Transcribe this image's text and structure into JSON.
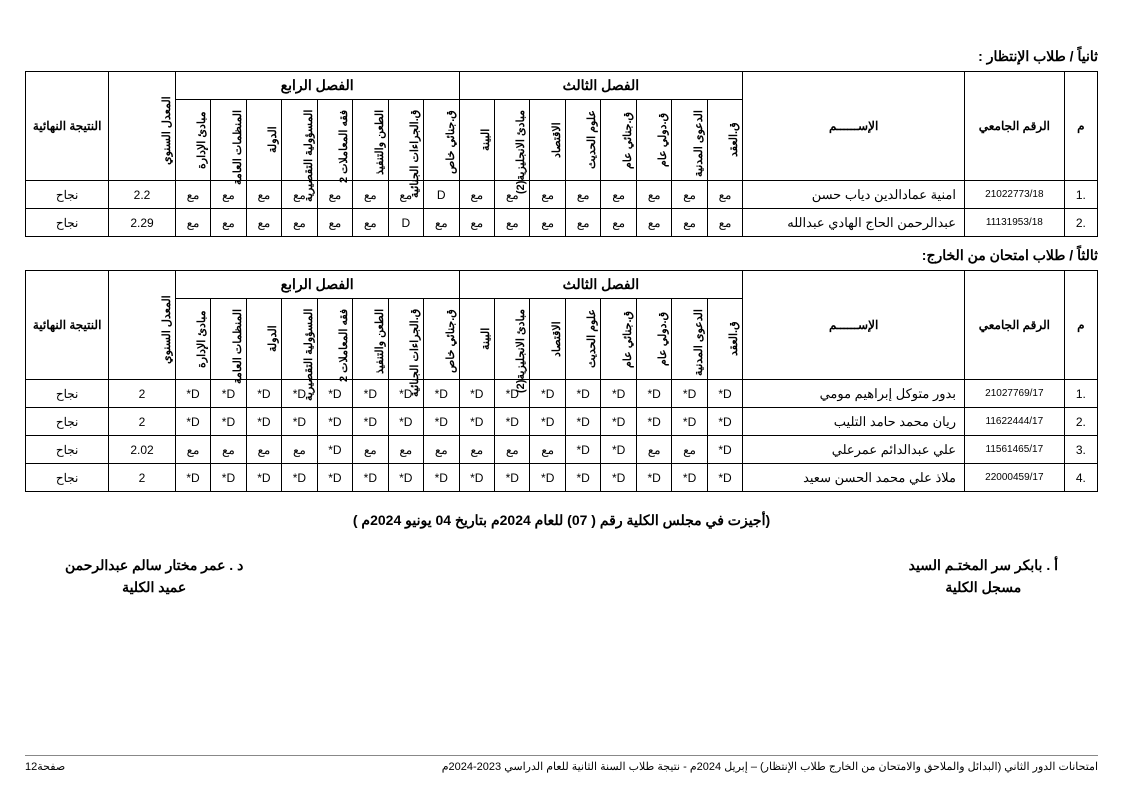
{
  "colors": {
    "text": "#000000",
    "background": "#ffffff",
    "border": "#000000",
    "footer_border": "#888888"
  },
  "sections": {
    "waiting": {
      "title": "ثانياً / طلاب الإنتظار :"
    },
    "external": {
      "title": "ثالثاً / طلاب امتحان من الخارج:"
    }
  },
  "headers": {
    "m": "م",
    "univ_id": "الرقم الجامعي",
    "name": "الإســــــم",
    "sem3": "الفصل الثالث",
    "sem4": "الفصل الرابع",
    "gpa": "المعدل السنوي",
    "result": "النتيجة النهائية"
  },
  "sem3_subjects": [
    "ق.العقد",
    "الدعوى المدنية",
    "ق.دولي عام",
    "ق.جنائي عام",
    "علوم الحديث",
    "الاقتصاد",
    "مبادئ الانجليزية(2)",
    "البينة"
  ],
  "sem4_subjects": [
    "ق.جنائي خاص",
    "ق.الجراءات الجنائية",
    "الطعن والتنفيذ",
    "فقه المعاملات 2",
    "المسؤولية التقصيرية",
    "الدولة",
    "المنظمات العامة",
    "مبادئ الإدارة"
  ],
  "waiting_rows": [
    {
      "n": ".1",
      "id": "21022773/18",
      "name": "امنية عمادالدين دياب حسن",
      "s3": [
        "مع",
        "مع",
        "مع",
        "مع",
        "مع",
        "مع",
        "مع",
        "مع"
      ],
      "s4": [
        "D",
        "مع",
        "مع",
        "مع",
        "مع",
        "مع",
        "مع",
        "مع"
      ],
      "gpa": "2.2",
      "result": "نجاح"
    },
    {
      "n": ".2",
      "id": "11131953/18",
      "name": "عبدالرحمن الحاج الهادي عبدالله",
      "s3": [
        "مع",
        "مع",
        "مع",
        "مع",
        "مع",
        "مع",
        "مع",
        "مع"
      ],
      "s4": [
        "مع",
        "D",
        "مع",
        "مع",
        "مع",
        "مع",
        "مع",
        "مع"
      ],
      "gpa": "2.29",
      "result": "نجاح"
    }
  ],
  "external_rows": [
    {
      "n": ".1",
      "id": "21027769/17",
      "name": "بدور متوكل إبراهيم مومي",
      "s3": [
        "D*",
        "D*",
        "D*",
        "D*",
        "D*",
        "D*",
        "D*",
        "D*"
      ],
      "s4": [
        "D*",
        "D*",
        "D*",
        "D*",
        "D*",
        "D*",
        "D*",
        "D*"
      ],
      "gpa": "2",
      "result": "نجاح"
    },
    {
      "n": ".2",
      "id": "11622444/17",
      "name": "ريان محمد حامد التليب",
      "s3": [
        "D*",
        "D*",
        "D*",
        "D*",
        "D*",
        "D*",
        "D*",
        "D*"
      ],
      "s4": [
        "D*",
        "D*",
        "D*",
        "D*",
        "D*",
        "D*",
        "D*",
        "D*"
      ],
      "gpa": "2",
      "result": "نجاح"
    },
    {
      "n": ".3",
      "id": "11561465/17",
      "name": "علي عبدالدائم عمرعلي",
      "s3": [
        "D*",
        "مع",
        "مع",
        "D*",
        "D*",
        "مع",
        "مع",
        "مع"
      ],
      "s4": [
        "مع",
        "مع",
        "مع",
        "D*",
        "مع",
        "مع",
        "مع",
        "مع"
      ],
      "gpa": "2.02",
      "result": "نجاح"
    },
    {
      "n": ".4",
      "id": "22000459/17",
      "name": "ملاذ علي محمد الحسن سعيد",
      "s3": [
        "D*",
        "D*",
        "D*",
        "D*",
        "D*",
        "D*",
        "D*",
        "D*"
      ],
      "s4": [
        "D*",
        "D*",
        "D*",
        "D*",
        "D*",
        "D*",
        "D*",
        "D*"
      ],
      "gpa": "2",
      "result": "نجاح"
    }
  ],
  "approval": "(أجيزت في مجلس الكلية رقم ( 07) للعام 2024م بتاريخ 04 يونيو 2024م )",
  "signatures": {
    "right_name": "أ . بابكر سر المختـم السيد",
    "right_title": "مسجل الكلية",
    "left_name": "د . عمر مختار سالم عبدالرحمن",
    "left_title": "عميد الكلية"
  },
  "footer": {
    "right": "امتحانات الدور الثاني (البدائل والملاحق والامتحان من الخارج طلاب الإنتظار) – إبريل 2024م   -    نتيجة طلاب السنة الثانية للعام الدراسي 2023-2024م",
    "left": "صفحة12"
  }
}
